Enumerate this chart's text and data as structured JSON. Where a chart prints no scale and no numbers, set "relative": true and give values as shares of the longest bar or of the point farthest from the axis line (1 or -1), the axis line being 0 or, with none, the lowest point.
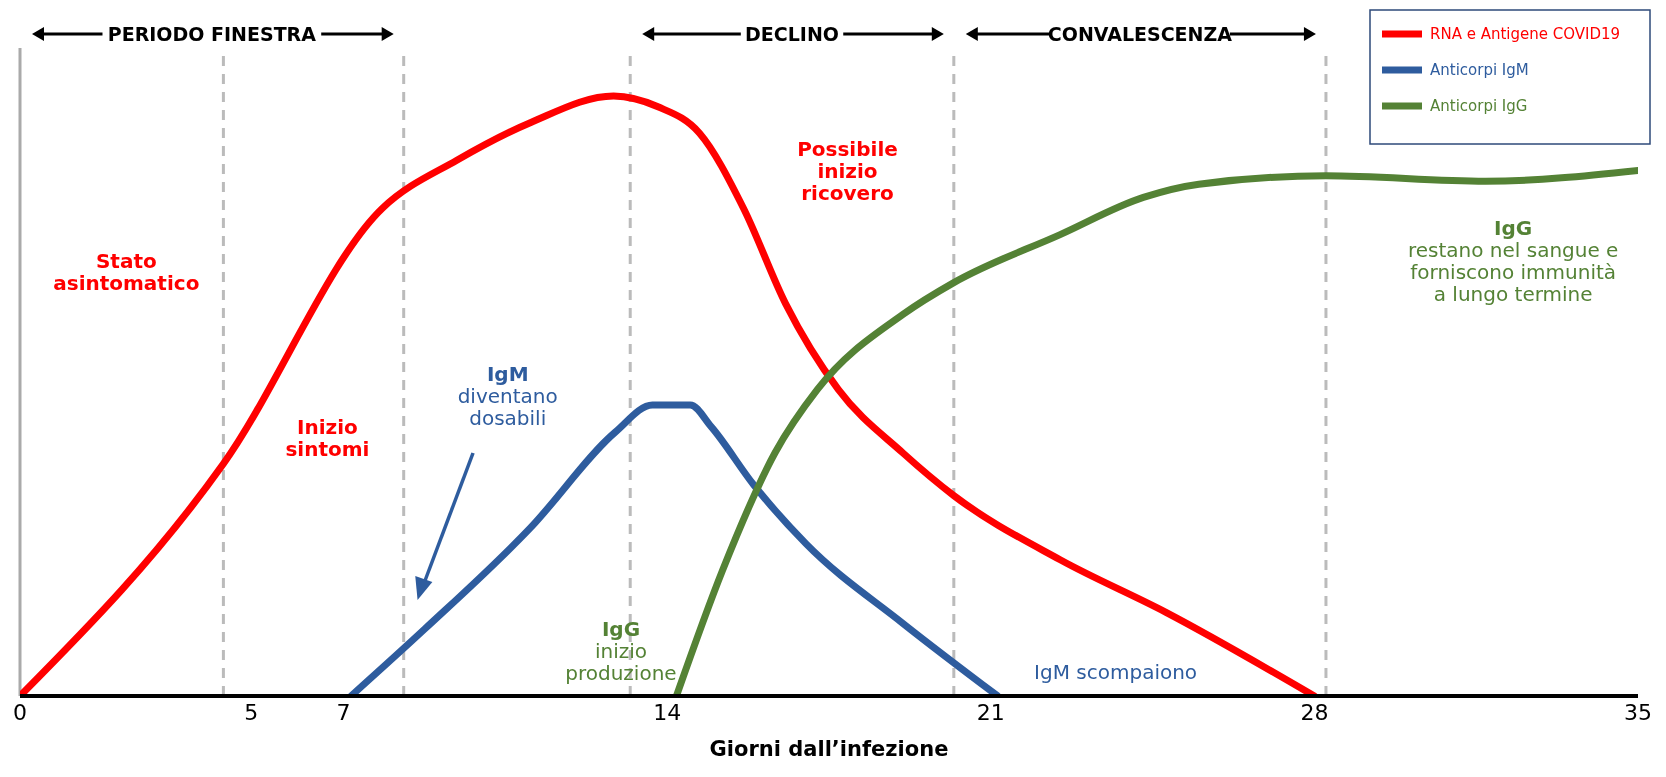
{
  "chart_data": {
    "type": "line",
    "relative": true,
    "xlabel": "Giorni dall’infezione",
    "xlim": [
      0,
      35
    ],
    "xticks": [
      0,
      5,
      7,
      14,
      21,
      28,
      35
    ],
    "grid": false,
    "legend": "top right",
    "marker": "none",
    "line_style": "solid",
    "series": [
      {
        "name": "RNA e Antigene COVID19",
        "color": "#ff0000",
        "x": [
          0,
          4.4,
          7.84,
          9.45,
          11.05,
          12.84,
          13.8,
          14.7,
          15.65,
          16.56,
          17.7,
          19.1,
          20.2,
          22.5,
          24.8,
          28
        ],
        "values": [
          0,
          0.387,
          0.813,
          0.893,
          0.956,
          1,
          0.982,
          0.938,
          0.813,
          0.654,
          0.511,
          0.405,
          0.334,
          0.227,
          0.139,
          0
        ]
      },
      {
        "name": "Anticorpi IgM",
        "color": "#2e5c9e",
        "x": [
          7.16,
          8.76,
          11.05,
          12.88,
          13.68,
          14.5,
          14.95,
          15.87,
          17.0,
          19.1,
          21.15
        ],
        "values": [
          0,
          0.112,
          0.281,
          0.44,
          0.485,
          0.485,
          0.449,
          0.352,
          0.254,
          0.121,
          0
        ]
      },
      {
        "name": "Anticorpi IgG",
        "color": "#548235",
        "x": [
          14.2,
          15.2,
          16.33,
          17.25,
          19.1,
          20.2,
          22.5,
          24.3,
          25.5,
          28.25,
          31.7,
          35
        ],
        "values": [
          0,
          0.21,
          0.405,
          0.511,
          0.636,
          0.689,
          0.769,
          0.831,
          0.853,
          0.867,
          0.858,
          0.876
        ]
      }
    ],
    "ref_lines": [
      {
        "axis": "x",
        "value": 0,
        "color": "#aaaaaa",
        "line_style": "solid"
      },
      {
        "axis": "x",
        "value": 4.4,
        "color": "#bbbbbb",
        "line_style": "dashed"
      },
      {
        "axis": "x",
        "value": 8.3,
        "color": "#bbbbbb",
        "line_style": "dashed"
      },
      {
        "axis": "x",
        "value": 13.2,
        "color": "#bbbbbb",
        "line_style": "dashed"
      },
      {
        "axis": "x",
        "value": 20.2,
        "color": "#bbbbbb",
        "line_style": "dashed"
      },
      {
        "axis": "x",
        "value": 28.25,
        "color": "#bbbbbb",
        "line_style": "dashed"
      }
    ],
    "annotations": [
      "PERIODO FINESTRA",
      "DECLINO",
      "CONVALESCENZA",
      "Stato\nasintomatico",
      "Inizio\nsintomi",
      "Possibile\ninizio\nricovero",
      "IgM\ndiventano\ndosabili",
      "IgG\ninizio\nproduzione",
      "IgM scompaiono",
      "IgG\nrestano nel sangue e\nforniscono immunità\na lungo termine"
    ]
  }
}
